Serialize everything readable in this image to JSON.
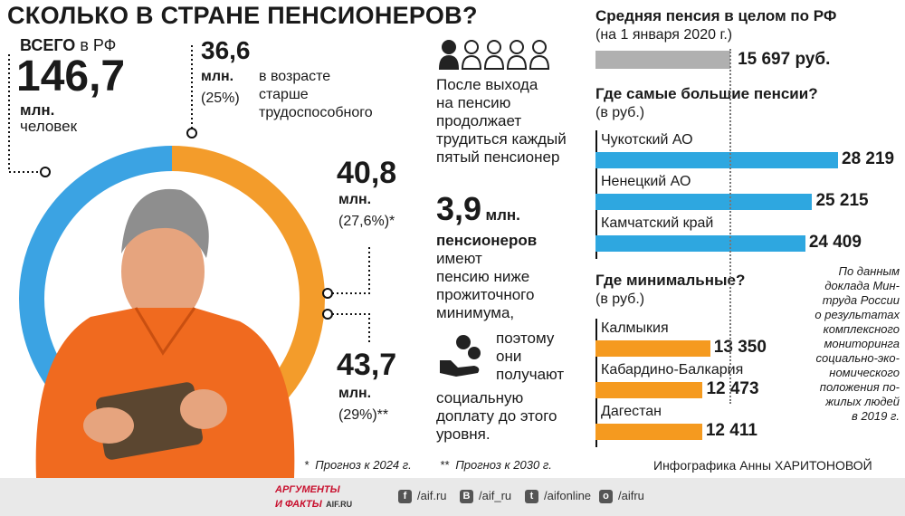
{
  "title": "СКОЛЬКО В СТРАНЕ ПЕНСИОНЕРОВ?",
  "total": {
    "prefix": "ВСЕГО",
    "suffix": "в РФ",
    "value": "146,7",
    "unit": "млн.",
    "unit2": "человек"
  },
  "donut": {
    "segments": [
      {
        "value": "36,6",
        "unit": "млн.",
        "share": "(25%)",
        "desc": [
          "в возрасте",
          "старше",
          "трудоспособного"
        ],
        "color": "#f39c2b",
        "pct": 25
      },
      {
        "value": "40,8",
        "unit": "млн.",
        "share": "(27,6%)*",
        "color": "#e8503a",
        "pct": 27.6
      },
      {
        "value": "43,7",
        "unit": "млн.",
        "share": "(29%)**",
        "color": "#3ba3e3",
        "pct": 29
      }
    ],
    "remainder_color": "#3ba3e3"
  },
  "working": {
    "text": [
      "После выхода",
      "на пенсию",
      "продолжает",
      "трудиться каждый",
      "пятый пенсионер"
    ],
    "highlighted_people": 1,
    "total_people": 5
  },
  "poverty": {
    "value": "3,9",
    "unit": "млн.",
    "bold": "пенсионеров",
    "text_top": [
      "имеют",
      "пенсию ниже",
      "прожиточного",
      "минимума,"
    ],
    "text_right": [
      "поэтому",
      "они",
      "получают"
    ],
    "text_bottom": [
      "социальную",
      "доплату до этого",
      "уровня."
    ]
  },
  "footnotes": {
    "one": "Прогноз к 2024 г.",
    "two": "Прогноз к 2030 г.",
    "one_mark": "*",
    "two_mark": "**"
  },
  "chart_data": [
    {
      "type": "bar",
      "title": "Средняя пенсия в целом по РФ",
      "subtitle": "(на 1 января 2020 г.)",
      "categories": [
        ""
      ],
      "values": [
        15697
      ],
      "value_labels": [
        "15 697 руб."
      ],
      "color": "#b0b0b0"
    },
    {
      "type": "bar",
      "title": "Где самые большие пенсии?",
      "subtitle": "(в руб.)",
      "categories": [
        "Чукотский АО",
        "Ненецкий АО",
        "Камчатский край"
      ],
      "values": [
        28219,
        25215,
        24409
      ],
      "value_labels": [
        "28 219",
        "25 215",
        "24 409"
      ],
      "color": "#2ea7e0"
    },
    {
      "type": "bar",
      "title": "Где минимальные?",
      "subtitle": "(в руб.)",
      "categories": [
        "Калмыкия",
        "Кабардино-Балкария",
        "Дагестан"
      ],
      "values": [
        13350,
        12473,
        12411
      ],
      "value_labels": [
        "13 350",
        "12 473",
        "12 411"
      ],
      "color": "#f59a1f"
    }
  ],
  "source": [
    "По данным",
    "доклада Мин-",
    "труда России",
    "о результатах",
    "комплексного",
    "мониторинга",
    "социально-эко-",
    "номического",
    "положения по-",
    "жилых людей",
    "в 2019 г."
  ],
  "credit": "Инфографика Анны ХАРИТОНОВОЙ",
  "footer": {
    "logo_top": "АРГУМЕНТЫ",
    "logo_bottom": "И ФАКТЫ",
    "logo_site": "AIF.RU",
    "social": [
      {
        "icon": "facebook-icon",
        "glyph": "f",
        "text": "/aif.ru"
      },
      {
        "icon": "vk-icon",
        "glyph": "В",
        "text": "/aif_ru"
      },
      {
        "icon": "twitter-icon",
        "glyph": "t",
        "text": "/aifonline"
      },
      {
        "icon": "ok-icon",
        "glyph": "о",
        "text": "/aifru"
      }
    ]
  }
}
